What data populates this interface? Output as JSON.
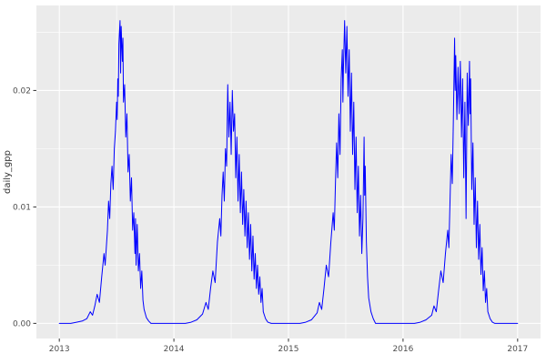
{
  "figure": {
    "background": "#ffffff",
    "panel_background": "#ebebeb",
    "grid_major_color": "#ffffff",
    "grid_minor_color": "#ffffff",
    "tick_mark_color": "#333333",
    "axis_text_color": "#4d4d4d",
    "line_color": "#0000ff"
  },
  "chart_data": {
    "type": "line",
    "title": "",
    "xlabel": "",
    "ylabel": "daily_gpp",
    "grid": true,
    "legend_position": "none",
    "xlim": [
      2012.8,
      2017.2
    ],
    "ylim": [
      -0.0013,
      0.0273
    ],
    "x_ticks": [
      2013,
      2014,
      2015,
      2016,
      2017
    ],
    "x_tick_labels": [
      "2013",
      "2014",
      "2015",
      "2016",
      "2017"
    ],
    "x_minor_ticks": [
      2013.5,
      2014.5,
      2015.5,
      2016.5
    ],
    "y_ticks": [
      0.0,
      0.01,
      0.02
    ],
    "y_tick_labels": [
      "0.00",
      "0.01",
      "0.02"
    ],
    "y_minor_ticks": [
      0.005,
      0.015,
      0.025
    ],
    "series": [
      {
        "name": "daily_gpp",
        "color": "#0000ff",
        "points": [
          [
            2013.0,
            0
          ],
          [
            2013.05,
            0
          ],
          [
            2013.1,
            0
          ],
          [
            2013.15,
            0.0001
          ],
          [
            2013.2,
            0.0002
          ],
          [
            2013.24,
            0.0004
          ],
          [
            2013.27,
            0.001
          ],
          [
            2013.29,
            0.0007
          ],
          [
            2013.31,
            0.0015
          ],
          [
            2013.33,
            0.0025
          ],
          [
            2013.35,
            0.0018
          ],
          [
            2013.37,
            0.004
          ],
          [
            2013.39,
            0.006
          ],
          [
            2013.4,
            0.005
          ],
          [
            2013.42,
            0.008
          ],
          [
            2013.43,
            0.0105
          ],
          [
            2013.44,
            0.009
          ],
          [
            2013.45,
            0.012
          ],
          [
            2013.46,
            0.0135
          ],
          [
            2013.47,
            0.0115
          ],
          [
            2013.48,
            0.015
          ],
          [
            2013.49,
            0.0165
          ],
          [
            2013.5,
            0.019
          ],
          [
            2013.505,
            0.0175
          ],
          [
            2013.51,
            0.021
          ],
          [
            2013.515,
            0.0195
          ],
          [
            2013.52,
            0.024
          ],
          [
            2013.53,
            0.026
          ],
          [
            2013.535,
            0.0215
          ],
          [
            2013.54,
            0.0255
          ],
          [
            2013.55,
            0.0225
          ],
          [
            2013.555,
            0.0245
          ],
          [
            2013.56,
            0.019
          ],
          [
            2013.57,
            0.0205
          ],
          [
            2013.58,
            0.016
          ],
          [
            2013.59,
            0.018
          ],
          [
            2013.6,
            0.013
          ],
          [
            2013.61,
            0.0145
          ],
          [
            2013.62,
            0.0105
          ],
          [
            2013.63,
            0.0125
          ],
          [
            2013.64,
            0.008
          ],
          [
            2013.65,
            0.0095
          ],
          [
            2013.66,
            0.006
          ],
          [
            2013.665,
            0.009
          ],
          [
            2013.67,
            0.005
          ],
          [
            2013.68,
            0.0085
          ],
          [
            2013.69,
            0.0045
          ],
          [
            2013.7,
            0.006
          ],
          [
            2013.71,
            0.003
          ],
          [
            2013.72,
            0.0045
          ],
          [
            2013.73,
            0.002
          ],
          [
            2013.74,
            0.0012
          ],
          [
            2013.76,
            0.0005
          ],
          [
            2013.78,
            0.0002
          ],
          [
            2013.8,
            0
          ],
          [
            2013.9,
            0
          ],
          [
            2014.0,
            0
          ],
          [
            2014.1,
            0
          ],
          [
            2014.15,
            0.0001
          ],
          [
            2014.2,
            0.0003
          ],
          [
            2014.25,
            0.0008
          ],
          [
            2014.28,
            0.0018
          ],
          [
            2014.3,
            0.0012
          ],
          [
            2014.32,
            0.003
          ],
          [
            2014.34,
            0.0045
          ],
          [
            2014.36,
            0.0035
          ],
          [
            2014.38,
            0.007
          ],
          [
            2014.4,
            0.009
          ],
          [
            2014.41,
            0.0075
          ],
          [
            2014.42,
            0.011
          ],
          [
            2014.43,
            0.013
          ],
          [
            2014.44,
            0.0105
          ],
          [
            2014.45,
            0.015
          ],
          [
            2014.46,
            0.0135
          ],
          [
            2014.465,
            0.017
          ],
          [
            2014.47,
            0.0205
          ],
          [
            2014.48,
            0.016
          ],
          [
            2014.49,
            0.019
          ],
          [
            2014.5,
            0.0145
          ],
          [
            2014.51,
            0.02
          ],
          [
            2014.52,
            0.0165
          ],
          [
            2014.53,
            0.018
          ],
          [
            2014.54,
            0.0125
          ],
          [
            2014.55,
            0.016
          ],
          [
            2014.56,
            0.0105
          ],
          [
            2014.57,
            0.0145
          ],
          [
            2014.58,
            0.0095
          ],
          [
            2014.59,
            0.013
          ],
          [
            2014.6,
            0.0085
          ],
          [
            2014.61,
            0.0115
          ],
          [
            2014.62,
            0.0075
          ],
          [
            2014.63,
            0.0105
          ],
          [
            2014.64,
            0.0065
          ],
          [
            2014.65,
            0.0095
          ],
          [
            2014.66,
            0.0055
          ],
          [
            2014.67,
            0.0085
          ],
          [
            2014.68,
            0.0045
          ],
          [
            2014.69,
            0.0075
          ],
          [
            2014.7,
            0.0038
          ],
          [
            2014.71,
            0.006
          ],
          [
            2014.72,
            0.003
          ],
          [
            2014.73,
            0.005
          ],
          [
            2014.74,
            0.0025
          ],
          [
            2014.75,
            0.004
          ],
          [
            2014.76,
            0.0018
          ],
          [
            2014.77,
            0.003
          ],
          [
            2014.78,
            0.001
          ],
          [
            2014.8,
            0.0004
          ],
          [
            2014.82,
            0.0001
          ],
          [
            2014.85,
            0
          ],
          [
            2014.9,
            0
          ],
          [
            2015.0,
            0
          ],
          [
            2015.1,
            0
          ],
          [
            2015.15,
            0.0001
          ],
          [
            2015.2,
            0.0003
          ],
          [
            2015.25,
            0.0009
          ],
          [
            2015.27,
            0.0018
          ],
          [
            2015.29,
            0.0012
          ],
          [
            2015.31,
            0.003
          ],
          [
            2015.33,
            0.005
          ],
          [
            2015.35,
            0.004
          ],
          [
            2015.37,
            0.007
          ],
          [
            2015.39,
            0.0095
          ],
          [
            2015.4,
            0.008
          ],
          [
            2015.41,
            0.012
          ],
          [
            2015.42,
            0.0155
          ],
          [
            2015.43,
            0.0125
          ],
          [
            2015.44,
            0.018
          ],
          [
            2015.45,
            0.0145
          ],
          [
            2015.46,
            0.021
          ],
          [
            2015.47,
            0.0235
          ],
          [
            2015.475,
            0.019
          ],
          [
            2015.48,
            0.022
          ],
          [
            2015.49,
            0.026
          ],
          [
            2015.5,
            0.0215
          ],
          [
            2015.51,
            0.0255
          ],
          [
            2015.52,
            0.0195
          ],
          [
            2015.53,
            0.0235
          ],
          [
            2015.54,
            0.0165
          ],
          [
            2015.55,
            0.0215
          ],
          [
            2015.56,
            0.0145
          ],
          [
            2015.57,
            0.019
          ],
          [
            2015.58,
            0.0115
          ],
          [
            2015.59,
            0.016
          ],
          [
            2015.6,
            0.0095
          ],
          [
            2015.61,
            0.0135
          ],
          [
            2015.62,
            0.0075
          ],
          [
            2015.63,
            0.011
          ],
          [
            2015.64,
            0.006
          ],
          [
            2015.65,
            0.009
          ],
          [
            2015.655,
            0.0125
          ],
          [
            2015.66,
            0.016
          ],
          [
            2015.665,
            0.011
          ],
          [
            2015.67,
            0.0135
          ],
          [
            2015.68,
            0.007
          ],
          [
            2015.69,
            0.004
          ],
          [
            2015.7,
            0.0022
          ],
          [
            2015.72,
            0.001
          ],
          [
            2015.74,
            0.0004
          ],
          [
            2015.76,
            0
          ],
          [
            2015.85,
            0
          ],
          [
            2015.95,
            0
          ],
          [
            2016.05,
            0
          ],
          [
            2016.1,
            0
          ],
          [
            2016.15,
            0.0001
          ],
          [
            2016.2,
            0.0003
          ],
          [
            2016.25,
            0.0007
          ],
          [
            2016.27,
            0.0015
          ],
          [
            2016.29,
            0.001
          ],
          [
            2016.31,
            0.0028
          ],
          [
            2016.33,
            0.0045
          ],
          [
            2016.35,
            0.0035
          ],
          [
            2016.37,
            0.006
          ],
          [
            2016.39,
            0.008
          ],
          [
            2016.4,
            0.0065
          ],
          [
            2016.41,
            0.0105
          ],
          [
            2016.42,
            0.0145
          ],
          [
            2016.43,
            0.012
          ],
          [
            2016.44,
            0.018
          ],
          [
            2016.45,
            0.0245
          ],
          [
            2016.455,
            0.02
          ],
          [
            2016.46,
            0.023
          ],
          [
            2016.47,
            0.0175
          ],
          [
            2016.48,
            0.022
          ],
          [
            2016.49,
            0.018
          ],
          [
            2016.5,
            0.0225
          ],
          [
            2016.51,
            0.016
          ],
          [
            2016.52,
            0.021
          ],
          [
            2016.53,
            0.0125
          ],
          [
            2016.54,
            0.019
          ],
          [
            2016.55,
            0.009
          ],
          [
            2016.555,
            0.015
          ],
          [
            2016.56,
            0.0215
          ],
          [
            2016.57,
            0.017
          ],
          [
            2016.58,
            0.0225
          ],
          [
            2016.585,
            0.018
          ],
          [
            2016.59,
            0.021
          ],
          [
            2016.6,
            0.0115
          ],
          [
            2016.61,
            0.0155
          ],
          [
            2016.62,
            0.0085
          ],
          [
            2016.63,
            0.0125
          ],
          [
            2016.64,
            0.0065
          ],
          [
            2016.65,
            0.0105
          ],
          [
            2016.66,
            0.0055
          ],
          [
            2016.67,
            0.0085
          ],
          [
            2016.68,
            0.0042
          ],
          [
            2016.69,
            0.0065
          ],
          [
            2016.7,
            0.0028
          ],
          [
            2016.71,
            0.0045
          ],
          [
            2016.72,
            0.0018
          ],
          [
            2016.73,
            0.003
          ],
          [
            2016.74,
            0.001
          ],
          [
            2016.76,
            0.0004
          ],
          [
            2016.78,
            0.0001
          ],
          [
            2016.8,
            0
          ],
          [
            2016.9,
            0
          ],
          [
            2017.0,
            0
          ]
        ]
      }
    ]
  }
}
